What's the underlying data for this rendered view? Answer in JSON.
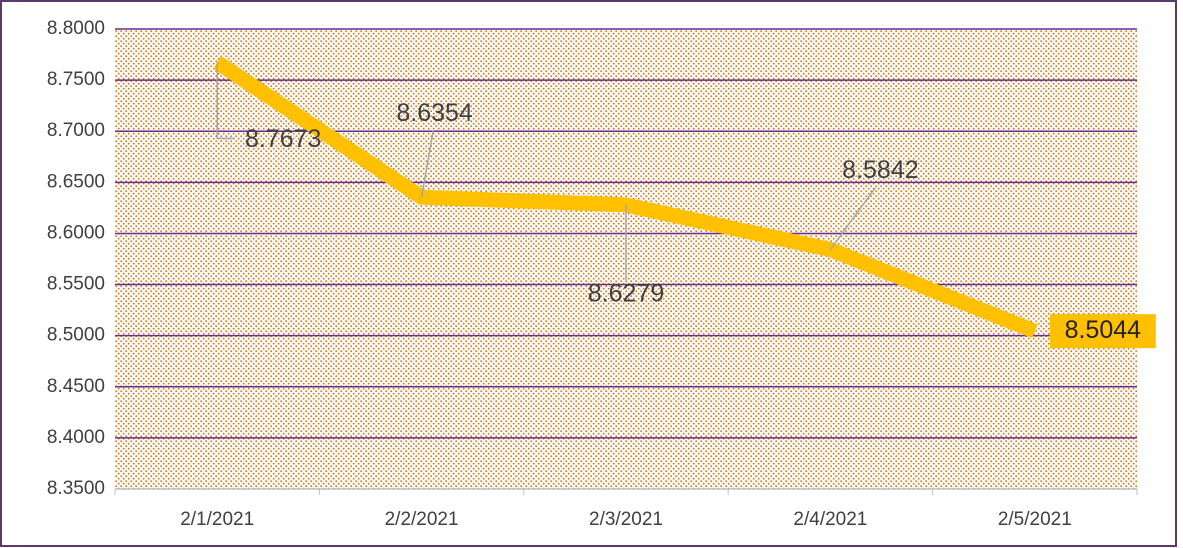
{
  "chart_data": {
    "type": "line",
    "categories": [
      "2/1/2021",
      "2/2/2021",
      "2/3/2021",
      "2/4/2021",
      "2/5/2021"
    ],
    "series": [
      {
        "color": "#ffc000",
        "values": [
          8.7673,
          8.6354,
          8.6279,
          8.5842,
          8.5044
        ]
      }
    ],
    "ylim": [
      8.35,
      8.8
    ],
    "yticks": [
      {
        "value": 8.35,
        "label": "8.3500"
      },
      {
        "value": 8.4,
        "label": "8.4000"
      },
      {
        "value": 8.45,
        "label": "8.4500"
      },
      {
        "value": 8.5,
        "label": "8.5000"
      },
      {
        "value": 8.55,
        "label": "8.5500"
      },
      {
        "value": 8.6,
        "label": "8.6000"
      },
      {
        "value": 8.65,
        "label": "8.6500"
      },
      {
        "value": 8.7,
        "label": "8.7000"
      },
      {
        "value": 8.75,
        "label": "8.7500"
      },
      {
        "value": 8.8,
        "label": "8.8000"
      }
    ],
    "grid": true,
    "grid_color": "#6a2d8c"
  }
}
